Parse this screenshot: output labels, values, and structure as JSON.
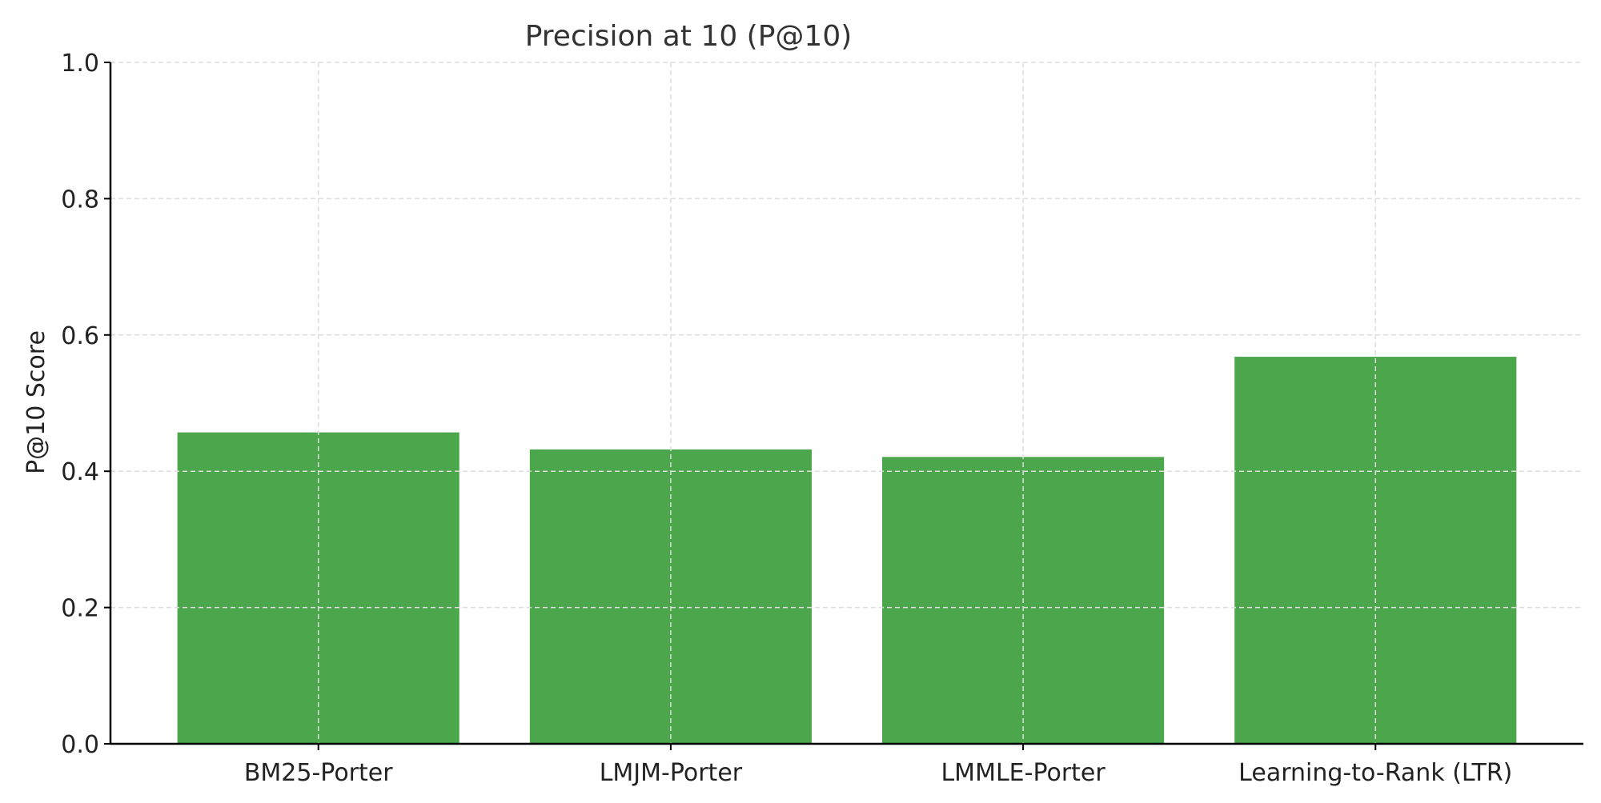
{
  "chart_data": {
    "type": "bar",
    "title": "Precision at 10 (P@10)",
    "xlabel": "",
    "ylabel": "P@10 Score",
    "categories": [
      "BM25-Porter",
      "LMJM-Porter",
      "LMMLE-Porter",
      "Learning-to-Rank (LTR)"
    ],
    "values": [
      0.457,
      0.432,
      0.421,
      0.568
    ],
    "ylim": [
      0.0,
      1.0
    ],
    "yticks": [
      "0.0",
      "0.2",
      "0.4",
      "0.6",
      "0.8",
      "1.0"
    ],
    "grid": true,
    "legend": "none",
    "colors": {
      "bar": "#4ca64c",
      "grid": "#dddddd",
      "axis": "#000000"
    }
  }
}
